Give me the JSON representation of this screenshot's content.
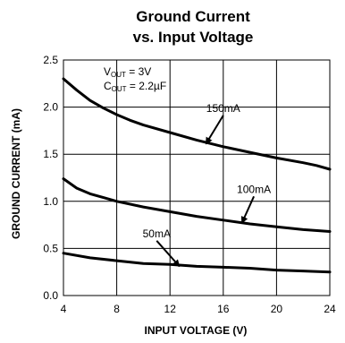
{
  "chart_data": {
    "type": "line",
    "title_line1": "Ground Current",
    "title_line2": "vs. Input Voltage",
    "xlabel": "INPUT VOLTAGE (V)",
    "ylabel": "GROUND CURRENT (mA)",
    "xlim": [
      4,
      24
    ],
    "ylim": [
      0,
      2.5
    ],
    "x_ticks": [
      "4",
      "8",
      "12",
      "16",
      "20",
      "24"
    ],
    "y_ticks": [
      "0.0",
      "0.5",
      "1.0",
      "1.5",
      "2.0",
      "2.5"
    ],
    "grid": true,
    "annotation": {
      "vout_label": "V",
      "vout_sub": "OUT",
      "vout_value": " = 3V",
      "cout_label": "C",
      "cout_sub": "OUT",
      "cout_value": " = 2.2µF"
    },
    "series": [
      {
        "name": "150mA",
        "x": [
          4,
          5,
          6,
          7,
          8,
          9,
          10,
          12,
          14,
          16,
          18,
          20,
          22,
          23,
          24
        ],
        "y": [
          2.3,
          2.18,
          2.07,
          1.99,
          1.92,
          1.86,
          1.81,
          1.73,
          1.65,
          1.58,
          1.52,
          1.46,
          1.41,
          1.38,
          1.34
        ],
        "label_at": [
          16,
          1.95
        ],
        "arrow_to": [
          14.7,
          1.61
        ]
      },
      {
        "name": "100mA",
        "x": [
          4,
          5,
          6,
          7,
          8,
          10,
          12,
          14,
          16,
          18,
          20,
          22,
          24
        ],
        "y": [
          1.24,
          1.14,
          1.08,
          1.04,
          1.0,
          0.94,
          0.89,
          0.84,
          0.8,
          0.76,
          0.73,
          0.7,
          0.68
        ],
        "label_at": [
          18.3,
          1.09
        ],
        "arrow_to": [
          17.4,
          0.77
        ]
      },
      {
        "name": "50mA",
        "x": [
          4,
          6,
          8,
          10,
          12,
          14,
          16,
          18,
          20,
          22,
          24
        ],
        "y": [
          0.45,
          0.4,
          0.37,
          0.34,
          0.33,
          0.31,
          0.3,
          0.29,
          0.27,
          0.26,
          0.25
        ],
        "label_at": [
          11,
          0.62
        ],
        "arrow_to": [
          12.7,
          0.31
        ]
      }
    ]
  }
}
